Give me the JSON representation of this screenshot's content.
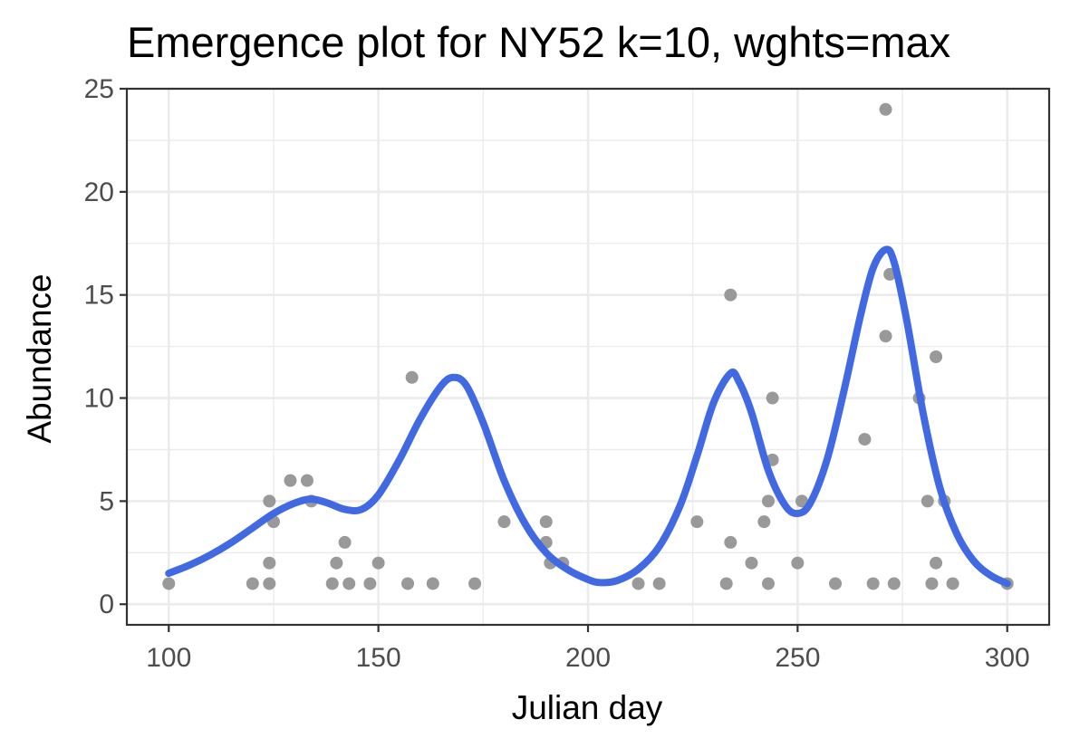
{
  "chart_data": {
    "type": "scatter",
    "title": "Emergence plot for NY52 k=10, wghts=max",
    "xlabel": "Julian day",
    "ylabel": "Abundance",
    "xlim": [
      90,
      310
    ],
    "ylim": [
      -1,
      25
    ],
    "x_ticks": [
      100,
      150,
      200,
      250,
      300
    ],
    "y_ticks": [
      0,
      5,
      10,
      15,
      20,
      25
    ],
    "grid": true,
    "legend": "none",
    "colors": {
      "points": "#999999",
      "curve": "#4169e1",
      "panel_border": "#333333",
      "grid": "#ebebeb"
    },
    "series": [
      {
        "kind": "points",
        "x": [
          100,
          120,
          124,
          124,
          124,
          125,
          129,
          133,
          134,
          139,
          140,
          142,
          143,
          148,
          150,
          157,
          158,
          163,
          173,
          180,
          190,
          190,
          191,
          194,
          212,
          217,
          226,
          233,
          234,
          234,
          239,
          242,
          243,
          243,
          244,
          244,
          250,
          251,
          259,
          266,
          268,
          271,
          271,
          272,
          273,
          279,
          281,
          282,
          283,
          283,
          285,
          287,
          300
        ],
        "y": [
          1,
          1,
          1,
          2,
          5,
          4,
          6,
          6,
          5,
          1,
          2,
          3,
          1,
          1,
          2,
          1,
          11,
          1,
          1,
          4,
          4,
          3,
          2,
          2,
          1,
          1,
          4,
          1,
          15,
          3,
          2,
          4,
          5,
          1,
          7,
          10,
          2,
          5,
          1,
          8,
          1,
          24,
          13,
          16,
          1,
          10,
          5,
          1,
          12,
          2,
          5,
          1,
          1
        ]
      },
      {
        "kind": "smooth-line",
        "x": [
          100,
          105,
          110,
          115,
          120,
          125,
          130,
          134,
          138,
          142,
          146,
          150,
          155,
          160,
          165,
          168,
          171,
          175,
          180,
          185,
          190,
          195,
          200,
          203,
          207,
          212,
          217,
          222,
          226,
          230,
          234,
          236,
          239,
          243,
          247,
          250,
          253,
          257,
          261,
          265,
          268,
          271,
          273,
          276,
          280,
          284,
          288,
          292,
          296,
          300
        ],
        "y": [
          1.5,
          1.9,
          2.4,
          3.0,
          3.7,
          4.4,
          4.9,
          5.1,
          4.9,
          4.6,
          4.6,
          5.3,
          7.0,
          9.0,
          10.6,
          11.0,
          10.6,
          8.8,
          6.0,
          3.9,
          2.5,
          1.7,
          1.2,
          1.05,
          1.15,
          1.7,
          2.8,
          4.8,
          7.2,
          9.8,
          11.2,
          10.8,
          9.3,
          6.5,
          4.8,
          4.4,
          4.9,
          7.0,
          10.3,
          14.0,
          16.3,
          17.2,
          16.6,
          13.8,
          9.2,
          5.6,
          3.4,
          2.1,
          1.4,
          1.0
        ]
      }
    ]
  }
}
